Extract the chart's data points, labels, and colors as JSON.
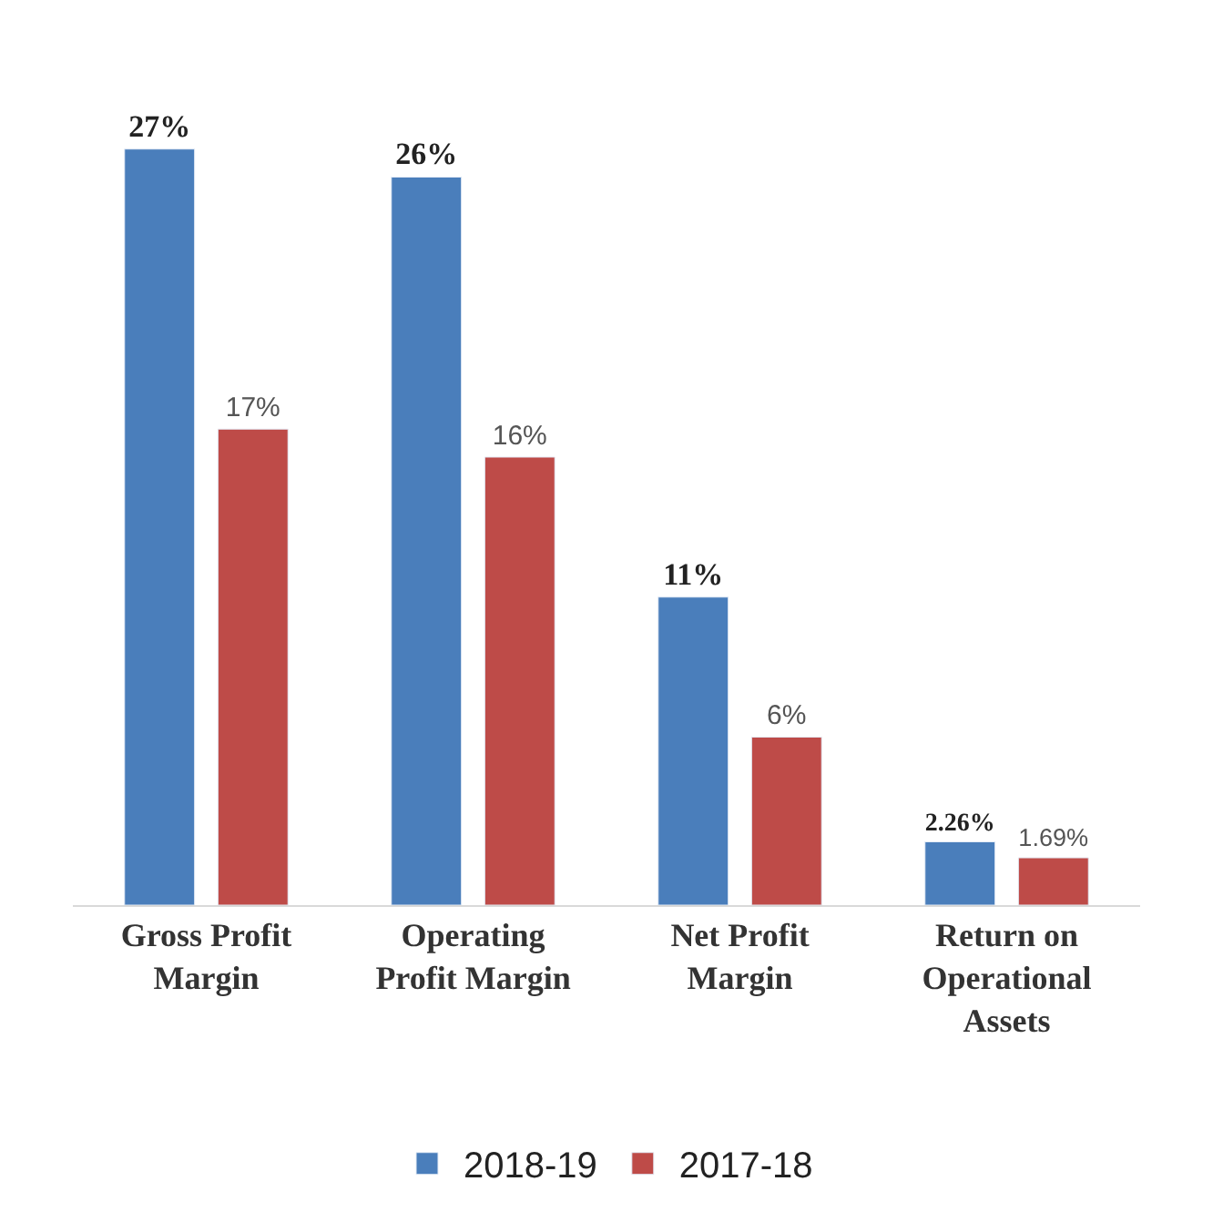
{
  "chart_data": {
    "type": "bar",
    "categories": [
      "Gross Profit Margin",
      "Operating Profit Margin",
      "Net Profit Margin",
      "Return on Operational Assets"
    ],
    "series": [
      {
        "name": "2018-19",
        "color": "#4a7ebb",
        "values": [
          27,
          26,
          11,
          2.26
        ],
        "value_labels": [
          "27%",
          "26%",
          "11%",
          "2.26%"
        ]
      },
      {
        "name": "2017-18",
        "color": "#be4b48",
        "values": [
          17,
          16,
          6,
          1.69
        ],
        "value_labels": [
          "17%",
          "16%",
          "6%",
          "1.69%"
        ]
      }
    ],
    "legend": "bottom"
  }
}
